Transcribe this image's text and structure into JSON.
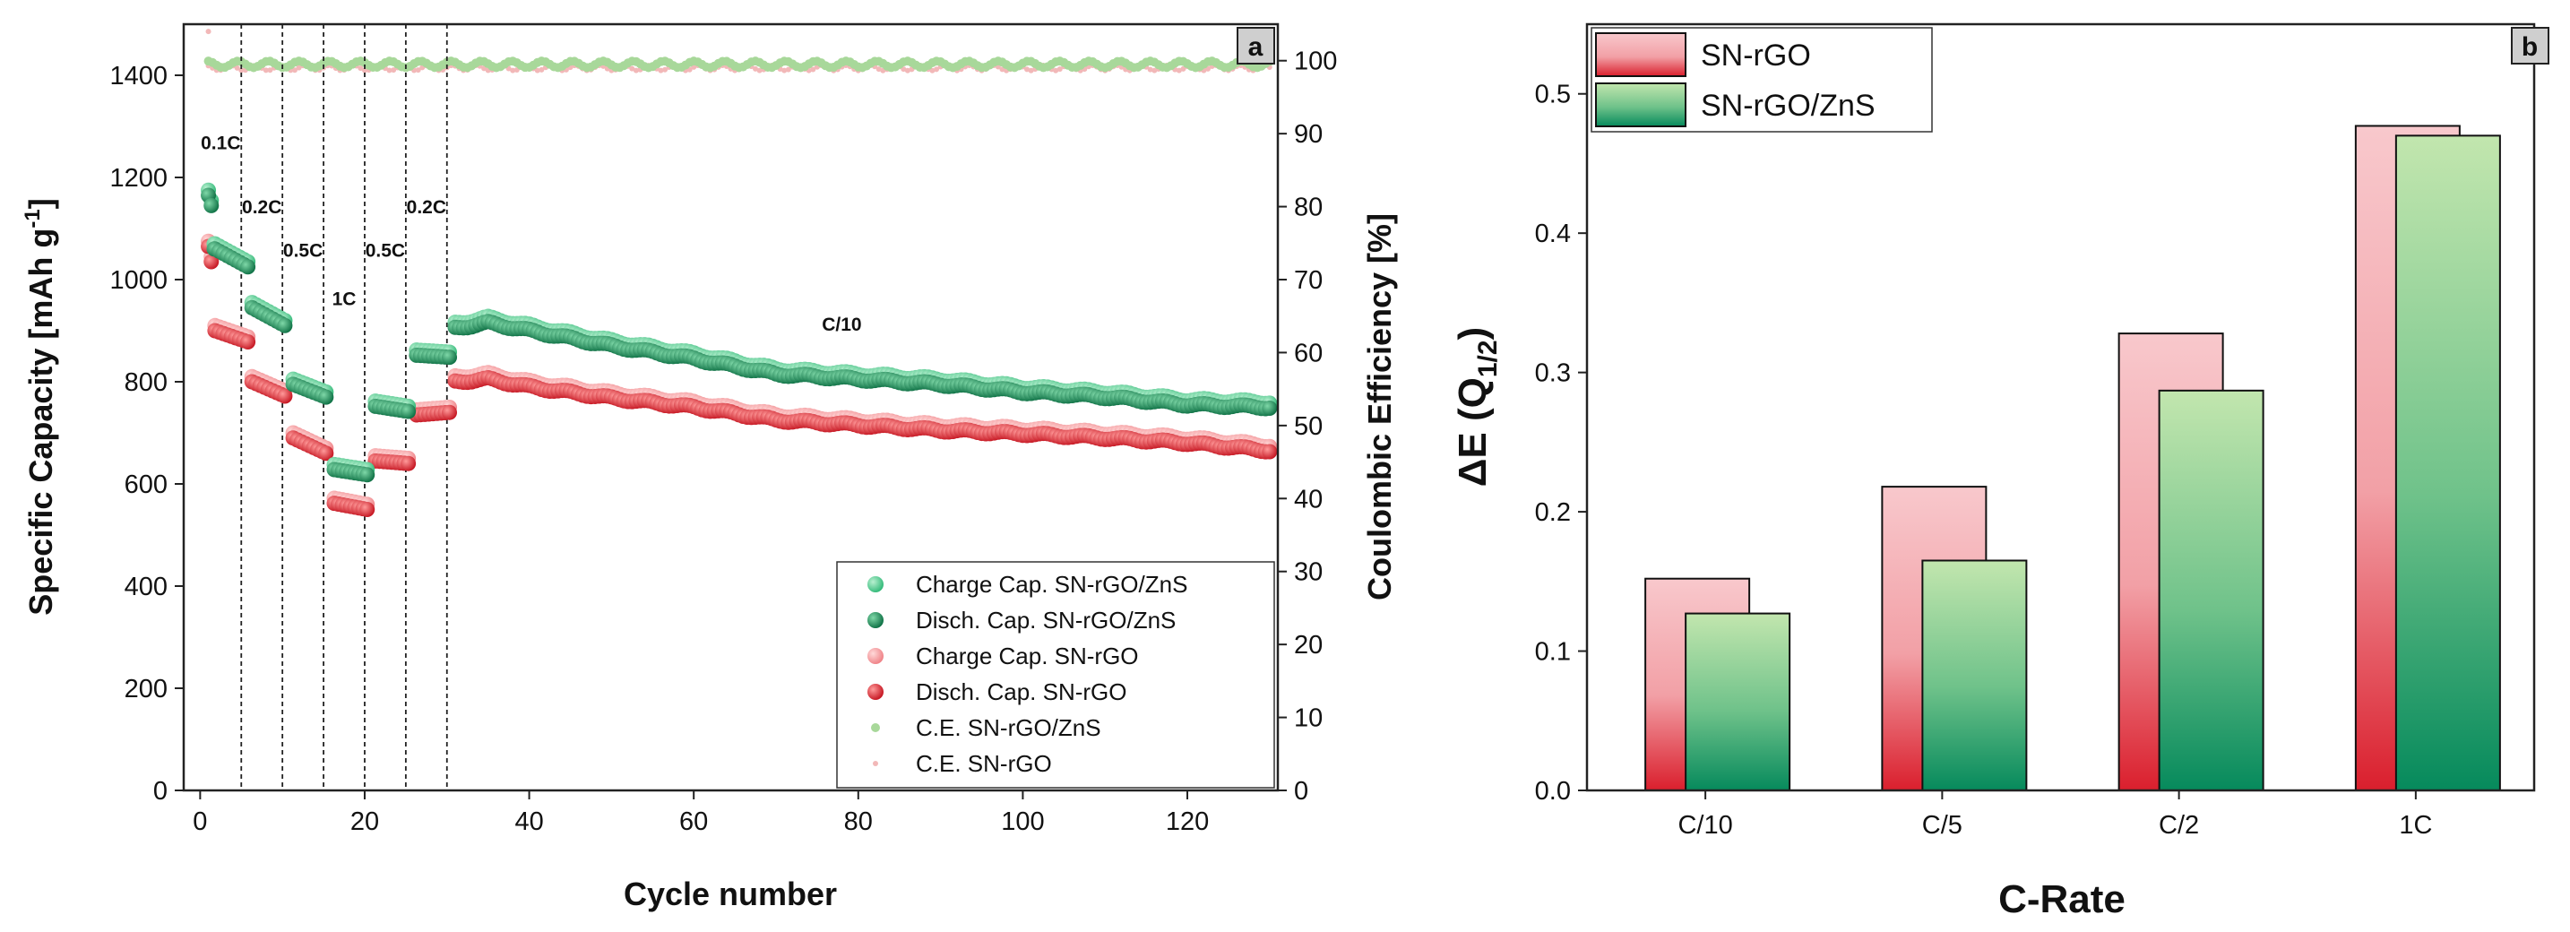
{
  "chart_data": [
    {
      "panel": "a",
      "type": "scatter",
      "xlabel": "Cycle number",
      "ylabel_main": "Specific Capacity [mAh g",
      "ylabel_sup": "-1",
      "ylabel_end": "]",
      "y2label": "Coulombic Efficiency [%]",
      "xlim": [
        -2,
        131
      ],
      "ylim": [
        0,
        1500
      ],
      "y2lim": [
        0,
        105
      ],
      "xticks": [
        "0",
        "20",
        "40",
        "60",
        "80",
        "100",
        "120"
      ],
      "yticks": [
        "0",
        "200",
        "400",
        "600",
        "800",
        "1000",
        "1200",
        "1400"
      ],
      "y2ticks": [
        "0",
        "10",
        "20",
        "30",
        "40",
        "50",
        "60",
        "70",
        "80",
        "90",
        "100"
      ],
      "rate_labels": [
        "0.1C",
        "0.2C",
        "0.5C",
        "1C",
        "0.5C",
        "0.2C",
        "C/10"
      ],
      "rate_switch_cycles": [
        5,
        10,
        15,
        20,
        25,
        30
      ],
      "legend": [
        "Charge Cap. SN-rGO/ZnS",
        "Disch. Cap. SN-rGO/ZnS",
        "Charge Cap. SN-rGO",
        "Disch. Cap. SN-rGO",
        "C.E. SN-rGO/ZnS",
        "C.E. SN-rGO"
      ],
      "capacity_profiles": {
        "znS": {
          "first_cycles": [
            1165,
            1145,
            1060
          ],
          "rate_steps": [
            {
              "from": 1,
              "to": 5,
              "start": 1060,
              "end": 1025
            },
            {
              "from": 6,
              "to": 10,
              "start": 945,
              "end": 910
            },
            {
              "from": 11,
              "to": 15,
              "start": 795,
              "end": 770
            },
            {
              "from": 16,
              "to": 20,
              "start": 628,
              "end": 618
            },
            {
              "from": 21,
              "to": 25,
              "start": 752,
              "end": 742
            },
            {
              "from": 26,
              "to": 30,
              "start": 852,
              "end": 848
            }
          ],
          "long_cycling": [
            [
              31,
              905
            ],
            [
              35,
              915
            ],
            [
              40,
              900
            ],
            [
              50,
              870
            ],
            [
              60,
              845
            ],
            [
              70,
              815
            ],
            [
              80,
              805
            ],
            [
              90,
              795
            ],
            [
              100,
              780
            ],
            [
              110,
              770
            ],
            [
              120,
              755
            ],
            [
              130,
              750
            ]
          ]
        },
        "rGO": {
          "first_cycles": [
            1065,
            1035
          ],
          "rate_steps": [
            {
              "from": 1,
              "to": 5,
              "start": 900,
              "end": 878
            },
            {
              "from": 6,
              "to": 10,
              "start": 800,
              "end": 772
            },
            {
              "from": 11,
              "to": 15,
              "start": 690,
              "end": 660
            },
            {
              "from": 16,
              "to": 20,
              "start": 562,
              "end": 550
            },
            {
              "from": 21,
              "to": 25,
              "start": 645,
              "end": 640
            },
            {
              "from": 26,
              "to": 30,
              "start": 735,
              "end": 740
            }
          ],
          "long_cycling": [
            [
              31,
              800
            ],
            [
              35,
              805
            ],
            [
              40,
              790
            ],
            [
              50,
              768
            ],
            [
              60,
              750
            ],
            [
              70,
              725
            ],
            [
              80,
              715
            ],
            [
              90,
              705
            ],
            [
              100,
              698
            ],
            [
              110,
              690
            ],
            [
              120,
              680
            ],
            [
              130,
              665
            ]
          ]
        },
        "ce_percent": {
          "znS": 99.5,
          "rGO": 99.0,
          "first_cycle_rGO": 104
        }
      },
      "colors": {
        "charge_znS": "#2fb877",
        "disch_znS": "#0b7a4b",
        "charge_rGO": "#f28a8a",
        "disch_rGO": "#d81e2a",
        "ce_znS": "#a8d89a",
        "ce_rGO": "#f2b8b8"
      }
    },
    {
      "panel": "b",
      "type": "bar",
      "xlabel": "C-Rate",
      "ylabel_main": "ΔE (Q",
      "ylabel_sub": "1/2",
      "ylabel_end": ")",
      "categories": [
        "C/10",
        "C/5",
        "C/2",
        "1C"
      ],
      "ylim": [
        0,
        0.55
      ],
      "yticks": [
        "0.0",
        "0.1",
        "0.2",
        "0.3",
        "0.4",
        "0.5"
      ],
      "series": [
        {
          "name": "SN-rGO",
          "values": [
            0.152,
            0.218,
            0.328,
            0.477
          ],
          "color": "#e02a3a"
        },
        {
          "name": "SN-rGO/ZnS",
          "values": [
            0.127,
            0.165,
            0.287,
            0.47
          ],
          "color": "#0f8f5f"
        }
      ]
    }
  ],
  "panel_tags": [
    "a",
    "b"
  ]
}
